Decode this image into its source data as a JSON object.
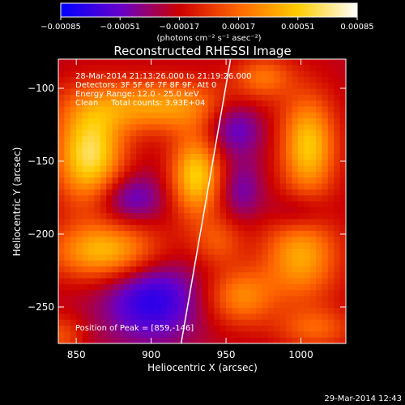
{
  "chart_data": {
    "type": "heatmap",
    "title": "Reconstructed RHESSI Image",
    "xlabel": "Heliocentric X (arcsec)",
    "ylabel": "Heliocentric Y (arcsec)",
    "xlim": [
      838,
      1030
    ],
    "ylim": [
      -275,
      -80
    ],
    "x_ticks": [
      850,
      900,
      950,
      1000
    ],
    "y_ticks": [
      -100,
      -150,
      -200,
      -250
    ],
    "x_tick_labels": [
      "850",
      "900",
      "950",
      "1000"
    ],
    "y_tick_labels": [
      "−100",
      "−150",
      "−200",
      "−250"
    ],
    "colorbar": {
      "range": [
        -0.00085,
        0.00085
      ],
      "ticks": [
        -0.00085,
        -0.00051,
        -0.00017,
        0.00017,
        0.00051,
        0.00085
      ],
      "tick_labels": [
        "−0.00085",
        "−0.00051",
        "−0.00017",
        "0.00017",
        "0.00051",
        "0.00085"
      ],
      "unit_label": "(photons cm⁻² s⁻¹ asec⁻²)",
      "colormap": [
        "#0000ff",
        "#6600cc",
        "#cc0000",
        "#ff6600",
        "#ffcc00",
        "#ffffff"
      ]
    },
    "annotations": [
      "28-Mar-2014 21:13:26.000 to 21:19:26.000",
      "Detectors: 3F 5F 6F 7F 8F 9F, Att 0",
      "Energy Range: 12.0 - 25.0 keV",
      "Clean     Total counts: 3.93E+04"
    ],
    "peak_label": "Position of Peak = [859,-146]",
    "peak_position": [
      859,
      -146
    ],
    "limb_line": [
      [
        920,
        -275
      ],
      [
        953,
        -80
      ]
    ],
    "sources": [
      {
        "x": 859,
        "y": -146,
        "amp": 0.00085,
        "sx": 16,
        "sy": 24
      },
      {
        "x": 930,
        "y": -160,
        "amp": 0.00075,
        "sx": 12,
        "sy": 20
      },
      {
        "x": 1005,
        "y": -140,
        "amp": 0.00072,
        "sx": 13,
        "sy": 24
      },
      {
        "x": 905,
        "y": -112,
        "amp": 0.00058,
        "sx": 38,
        "sy": 13
      },
      {
        "x": 870,
        "y": -212,
        "amp": 0.00068,
        "sx": 26,
        "sy": 14
      },
      {
        "x": 1000,
        "y": -215,
        "amp": 0.0006,
        "sx": 18,
        "sy": 22
      },
      {
        "x": 960,
        "y": -243,
        "amp": 0.00048,
        "sx": 16,
        "sy": 14
      },
      {
        "x": 975,
        "y": -92,
        "amp": 0.0004,
        "sx": 14,
        "sy": 10
      },
      {
        "x": 945,
        "y": -205,
        "amp": 0.0003,
        "sx": 12,
        "sy": 12
      },
      {
        "x": 1010,
        "y": -265,
        "amp": 0.00035,
        "sx": 18,
        "sy": 10
      },
      {
        "x": 840,
        "y": -270,
        "amp": 0.0003,
        "sx": 10,
        "sy": 10
      },
      {
        "x": 955,
        "y": -125,
        "amp": -0.0004,
        "sx": 14,
        "sy": 14
      },
      {
        "x": 885,
        "y": -175,
        "amp": -0.00035,
        "sx": 16,
        "sy": 12
      },
      {
        "x": 900,
        "y": -245,
        "amp": -0.0005,
        "sx": 22,
        "sy": 20
      },
      {
        "x": 1000,
        "y": -185,
        "amp": -0.0003,
        "sx": 14,
        "sy": 10
      },
      {
        "x": 960,
        "y": -170,
        "amp": -0.00025,
        "sx": 10,
        "sy": 14
      }
    ]
  },
  "timestamp": "29-Mar-2014 12:43"
}
